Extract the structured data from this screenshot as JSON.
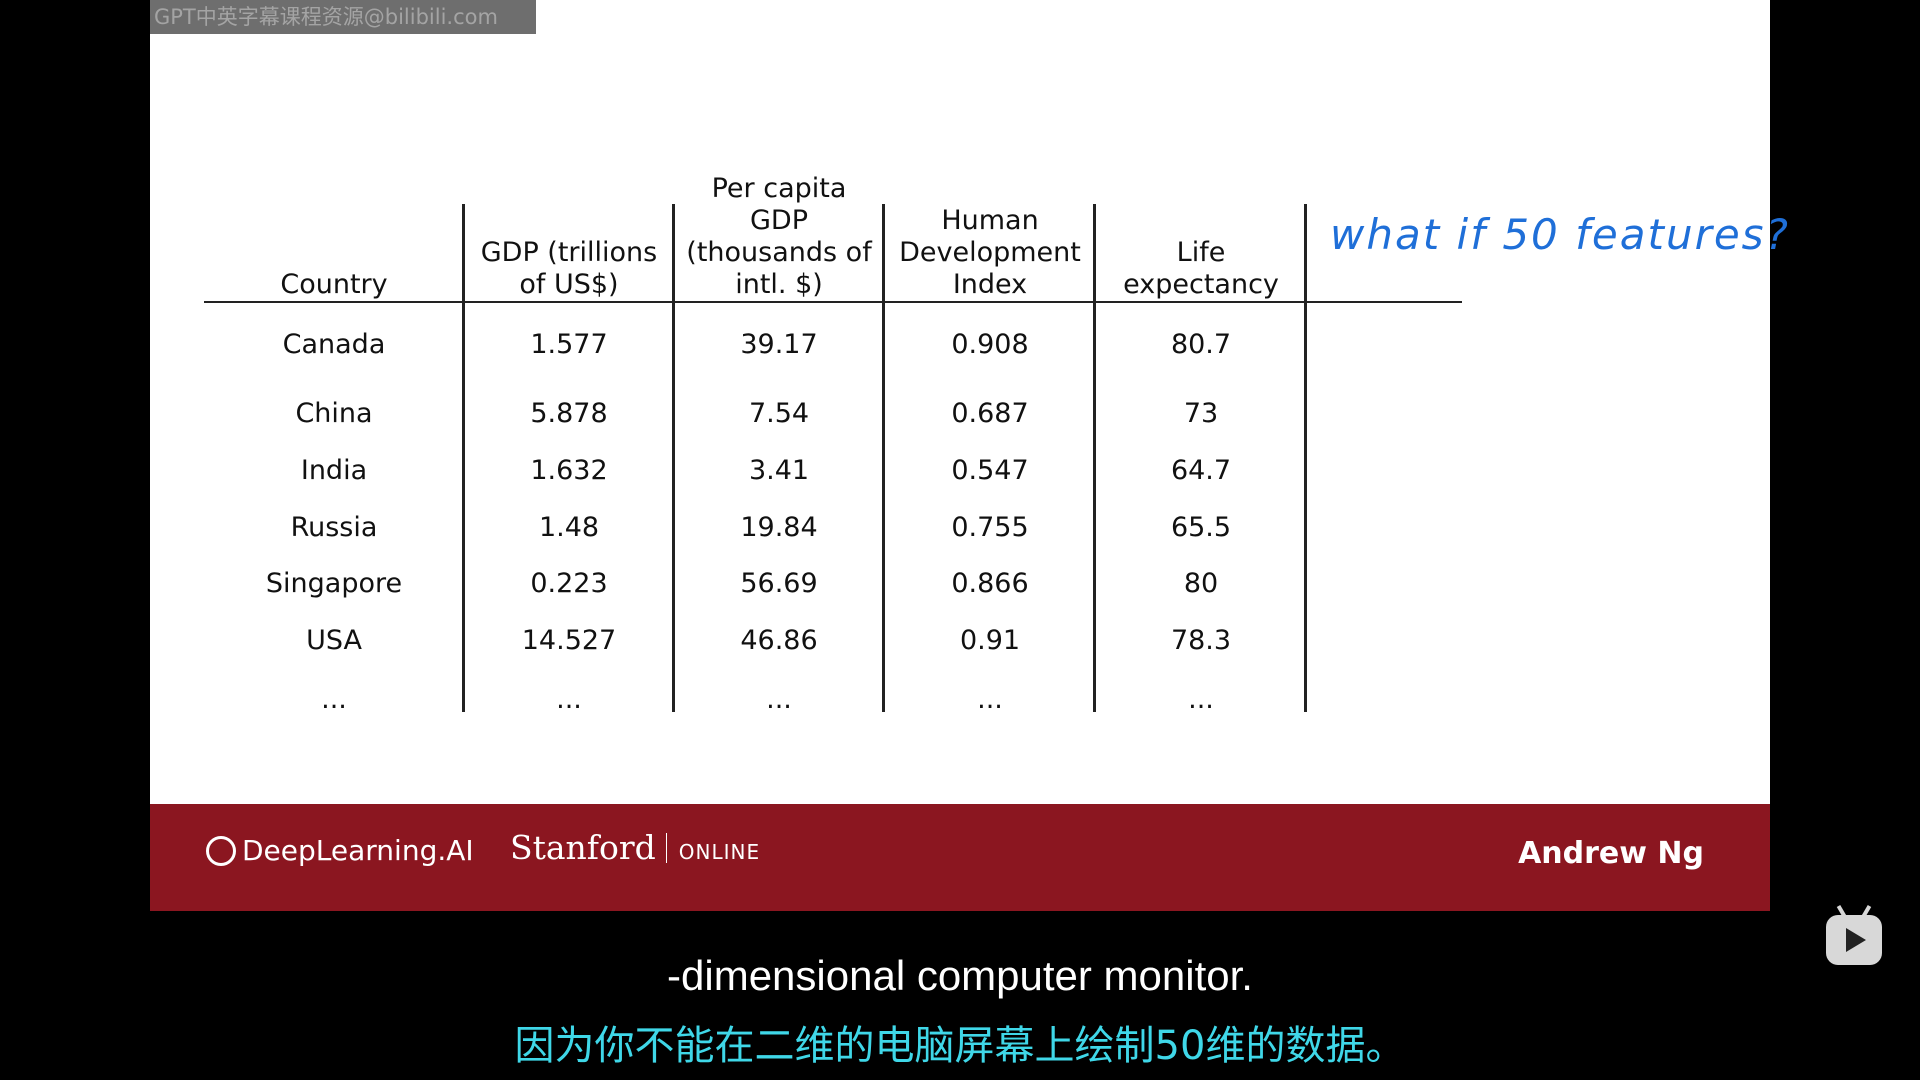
{
  "watermark": "GPT中英字幕课程资源@bilibili.com",
  "table": {
    "headers": [
      [
        "Country"
      ],
      [
        "GDP (trillions",
        "of US$)"
      ],
      [
        "Per capita GDP",
        "(thousands of",
        "intl. $)"
      ],
      [
        "Human",
        "Development",
        "Index"
      ],
      [
        "Life",
        "expectancy"
      ]
    ],
    "rows": [
      [
        "Canada",
        "1.577",
        "39.17",
        "0.908",
        "80.7"
      ],
      [
        "China",
        "5.878",
        "7.54",
        "0.687",
        "73"
      ],
      [
        "India",
        "1.632",
        "3.41",
        "0.547",
        "64.7"
      ],
      [
        "Russia",
        "1.48",
        "19.84",
        "0.755",
        "65.5"
      ],
      [
        "Singapore",
        "0.223",
        "56.69",
        "0.866",
        "80"
      ],
      [
        "USA",
        "14.527",
        "46.86",
        "0.91",
        "78.3"
      ],
      [
        "...",
        "...",
        "...",
        "...",
        "..."
      ]
    ]
  },
  "annotation": "what if 50 features?",
  "footer": {
    "brand1": "DeepLearning.AI",
    "brand2": "Stanford",
    "brand2_suffix": "ONLINE",
    "author": "Andrew Ng"
  },
  "subtitles": {
    "en": "-dimensional computer monitor.",
    "zh": "因为你不能在二维的电脑屏幕上绘制50维的数据。"
  },
  "colors": {
    "footer_bg": "#8b1620",
    "annotation": "#1f6fd8",
    "subtitle_zh": "#3fd7e8"
  },
  "icons": {
    "player": "bilibili-tv-play-icon",
    "logo": "deeplearning-ai-logo-icon"
  }
}
